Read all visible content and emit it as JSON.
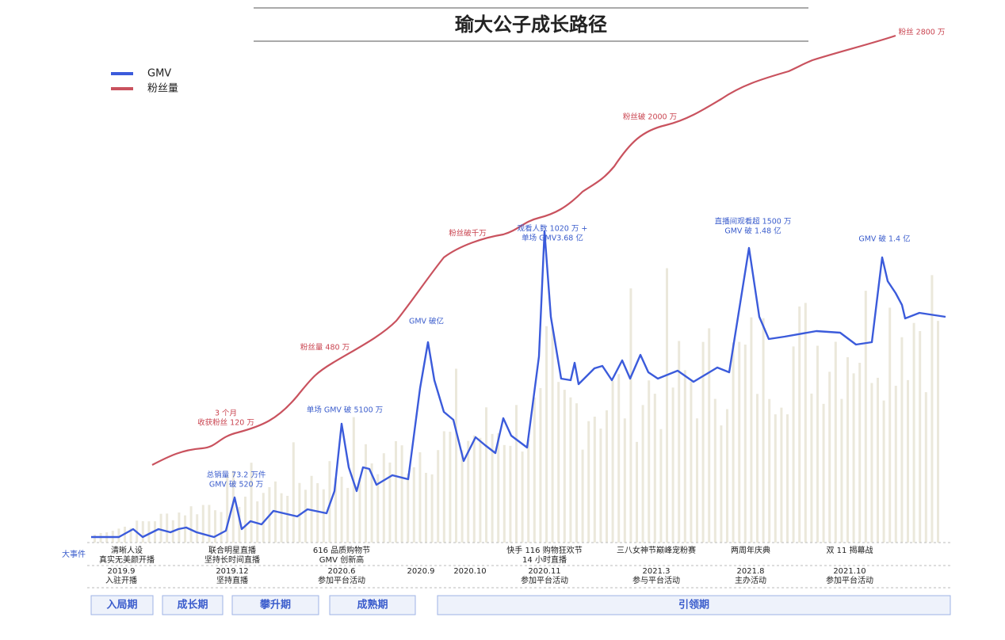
{
  "title": "瑜大公子成长路径",
  "legend": [
    "GMV",
    "粉丝量"
  ],
  "row_label": "大事件",
  "fan_annotations": [
    [
      "3 个月",
      "收获粉丝 120 万"
    ],
    [
      "粉丝量 480 万"
    ],
    [
      "粉丝破千万"
    ],
    [
      "粉丝破 2000 万"
    ],
    [
      "粉丝 2800 万"
    ]
  ],
  "gmv_annotations": [
    [
      "总销量 73.2 万件",
      "GMV 破 520 万"
    ],
    [
      "单场 GMV 破 5100 万"
    ],
    [
      "GMV 破亿"
    ],
    [
      "观看人数 1020 万 +",
      "单场 GMV3.68 亿"
    ],
    [
      "直播间观看超 1500 万",
      "GMV 破 1.48 亿"
    ],
    [
      "GMV 破 1.4 亿"
    ]
  ],
  "events": [
    [
      "清晰人设",
      "真实无美颜开播"
    ],
    [
      "联合明星直播",
      "坚持长时间直播"
    ],
    [
      "616 品质购物节",
      "GMV 创新高"
    ],
    [
      "快手 116 购物狂欢节",
      "14 小时直播"
    ],
    [
      "三八女神节巅峰宠粉赛"
    ],
    [
      "两周年庆典"
    ],
    [
      "双 11 揭幕战"
    ]
  ],
  "dates": [
    [
      "2019.9",
      "入驻开播"
    ],
    [
      "2019.12",
      "坚持直播"
    ],
    [
      "2020.6",
      "参加平台活动"
    ],
    [
      "2020.9"
    ],
    [
      "2020.10"
    ],
    [
      "2020.11",
      "参加平台活动"
    ],
    [
      "2021.3",
      "参与平台活动"
    ],
    [
      "2021.8",
      "主办活动"
    ],
    [
      "2021.10",
      "参加平台活动"
    ]
  ],
  "phases": [
    "入局期",
    "成长期",
    "攀升期",
    "成熟期",
    "引领期"
  ]
}
